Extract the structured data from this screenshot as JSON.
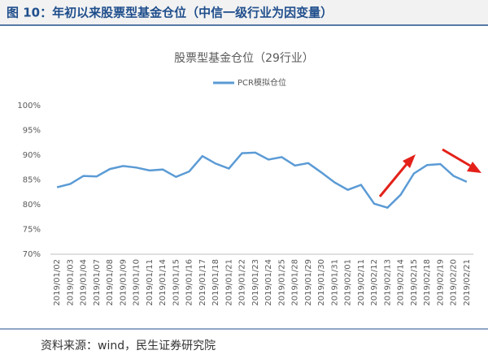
{
  "header": "图 10：年初以来股票型基金仓位（中信一级行业为因变量）",
  "source": "资料来源：wind，民生证券研究院",
  "chart_data": {
    "type": "line",
    "title": "股票型基金仓位（29行业）",
    "categories": [
      "2019/01/02",
      "2019/01/03",
      "2019/01/04",
      "2019/01/07",
      "2019/01/08",
      "2019/01/09",
      "2019/01/10",
      "2019/01/11",
      "2019/01/14",
      "2019/01/15",
      "2019/01/16",
      "2019/01/17",
      "2019/01/18",
      "2019/01/21",
      "2019/01/22",
      "2019/01/23",
      "2019/01/24",
      "2019/01/25",
      "2019/01/28",
      "2019/01/29",
      "2019/01/30",
      "2019/01/31",
      "2019/02/01",
      "2019/02/11",
      "2019/02/12",
      "2019/02/13",
      "2019/02/14",
      "2019/02/15",
      "2019/02/18",
      "2019/02/19",
      "2019/02/20",
      "2019/02/21"
    ],
    "series": [
      {
        "name": "PCR模拟仓位",
        "color": "#5b9bd5",
        "values": [
          83.5,
          84.2,
          85.8,
          85.7,
          87.2,
          87.8,
          87.5,
          86.9,
          87.1,
          85.6,
          86.7,
          89.8,
          88.3,
          87.3,
          90.4,
          90.5,
          89.1,
          89.6,
          87.9,
          88.4,
          86.5,
          84.5,
          83.0,
          84.0,
          80.2,
          79.4,
          82.0,
          86.3,
          88.0,
          88.2,
          85.8,
          84.6
        ]
      }
    ],
    "ylim": [
      70,
      100
    ],
    "yticks": [
      {
        "value": 70,
        "label": "70%"
      },
      {
        "value": 75,
        "label": "75%"
      },
      {
        "value": 80,
        "label": "80%"
      },
      {
        "value": 85,
        "label": "85%"
      },
      {
        "value": 90,
        "label": "90%"
      },
      {
        "value": 95,
        "label": "95%"
      },
      {
        "value": 100,
        "label": "100%"
      }
    ],
    "grid": false,
    "legend": "top"
  }
}
